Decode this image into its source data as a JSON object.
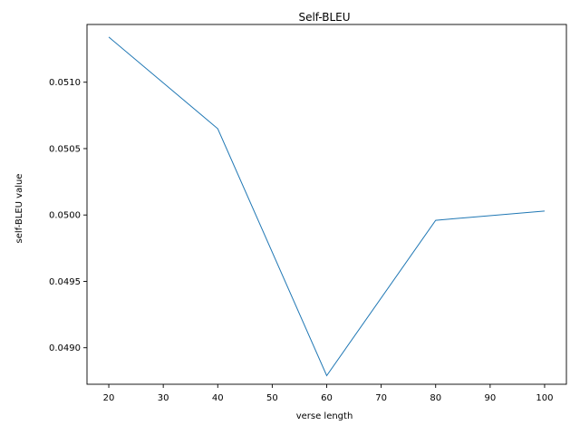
{
  "chart_data": {
    "type": "line",
    "title": "Self-BLEU",
    "xlabel": "verse length",
    "ylabel": "self-BLEU value",
    "x": [
      20,
      40,
      60,
      80,
      100
    ],
    "series": [
      {
        "values": [
          0.05134,
          0.05065,
          0.04879,
          0.04996,
          0.05003
        ]
      }
    ],
    "xlim": [
      16,
      104
    ],
    "ylim": [
      0.048725,
      0.051435
    ],
    "xticks": [
      20,
      30,
      40,
      50,
      60,
      70,
      80,
      90,
      100
    ],
    "xtick_labels": [
      "20",
      "30",
      "40",
      "50",
      "60",
      "70",
      "80",
      "90",
      "100"
    ],
    "yticks": [
      0.049,
      0.0495,
      0.05,
      0.0505,
      0.051
    ],
    "ytick_labels": [
      "0.0490",
      "0.0495",
      "0.0500",
      "0.0505",
      "0.0510"
    ],
    "grid": false,
    "line_color": "#1f77b4"
  }
}
